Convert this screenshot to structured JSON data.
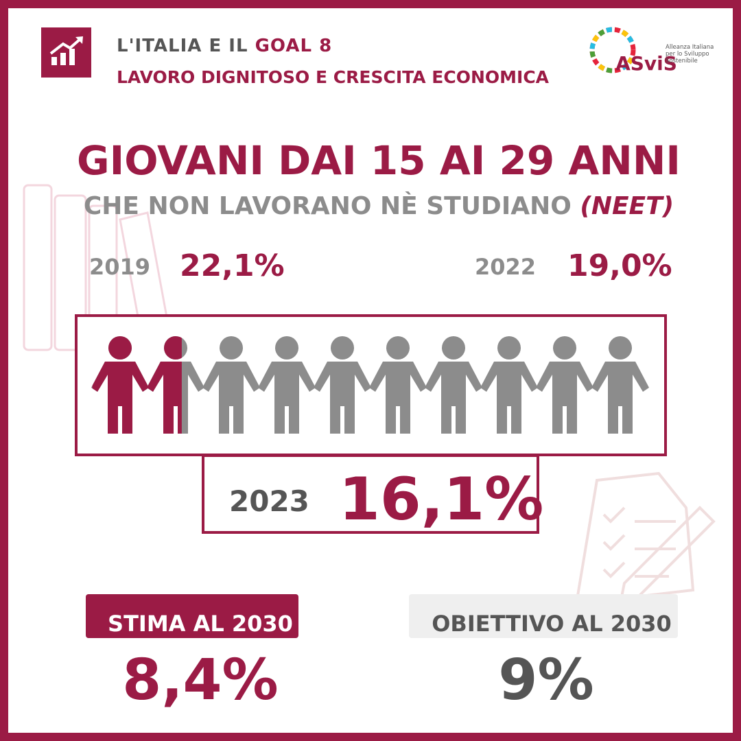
{
  "header": {
    "title_prefix": "L'ITALIA E IL",
    "goal": "GOAL 8",
    "subtitle": "LAVORO DIGNITOSO E CRESCITA ECONOMICA"
  },
  "logo": {
    "name": "ASviS",
    "text": [
      "Alleanza Italiana",
      "per lo Sviluppo",
      "Sostenibile"
    ]
  },
  "headline": {
    "title": "GIOVANI DAI 15 AI 29 ANNI",
    "subtitle": "CHE NON LAVORANO NÈ STUDIANO",
    "tag": "(NEET)"
  },
  "history": [
    {
      "year": "2019",
      "value": "22,1%"
    },
    {
      "year": "2022",
      "value": "19,0%"
    }
  ],
  "highlight": {
    "year": "2023",
    "value": 16.1,
    "value_label": "16,1%"
  },
  "targets": [
    {
      "label": "STIMA AL 2030",
      "value": "8,4%"
    },
    {
      "label": "OBIETTIVO AL 2030",
      "value": "9%"
    }
  ]
}
